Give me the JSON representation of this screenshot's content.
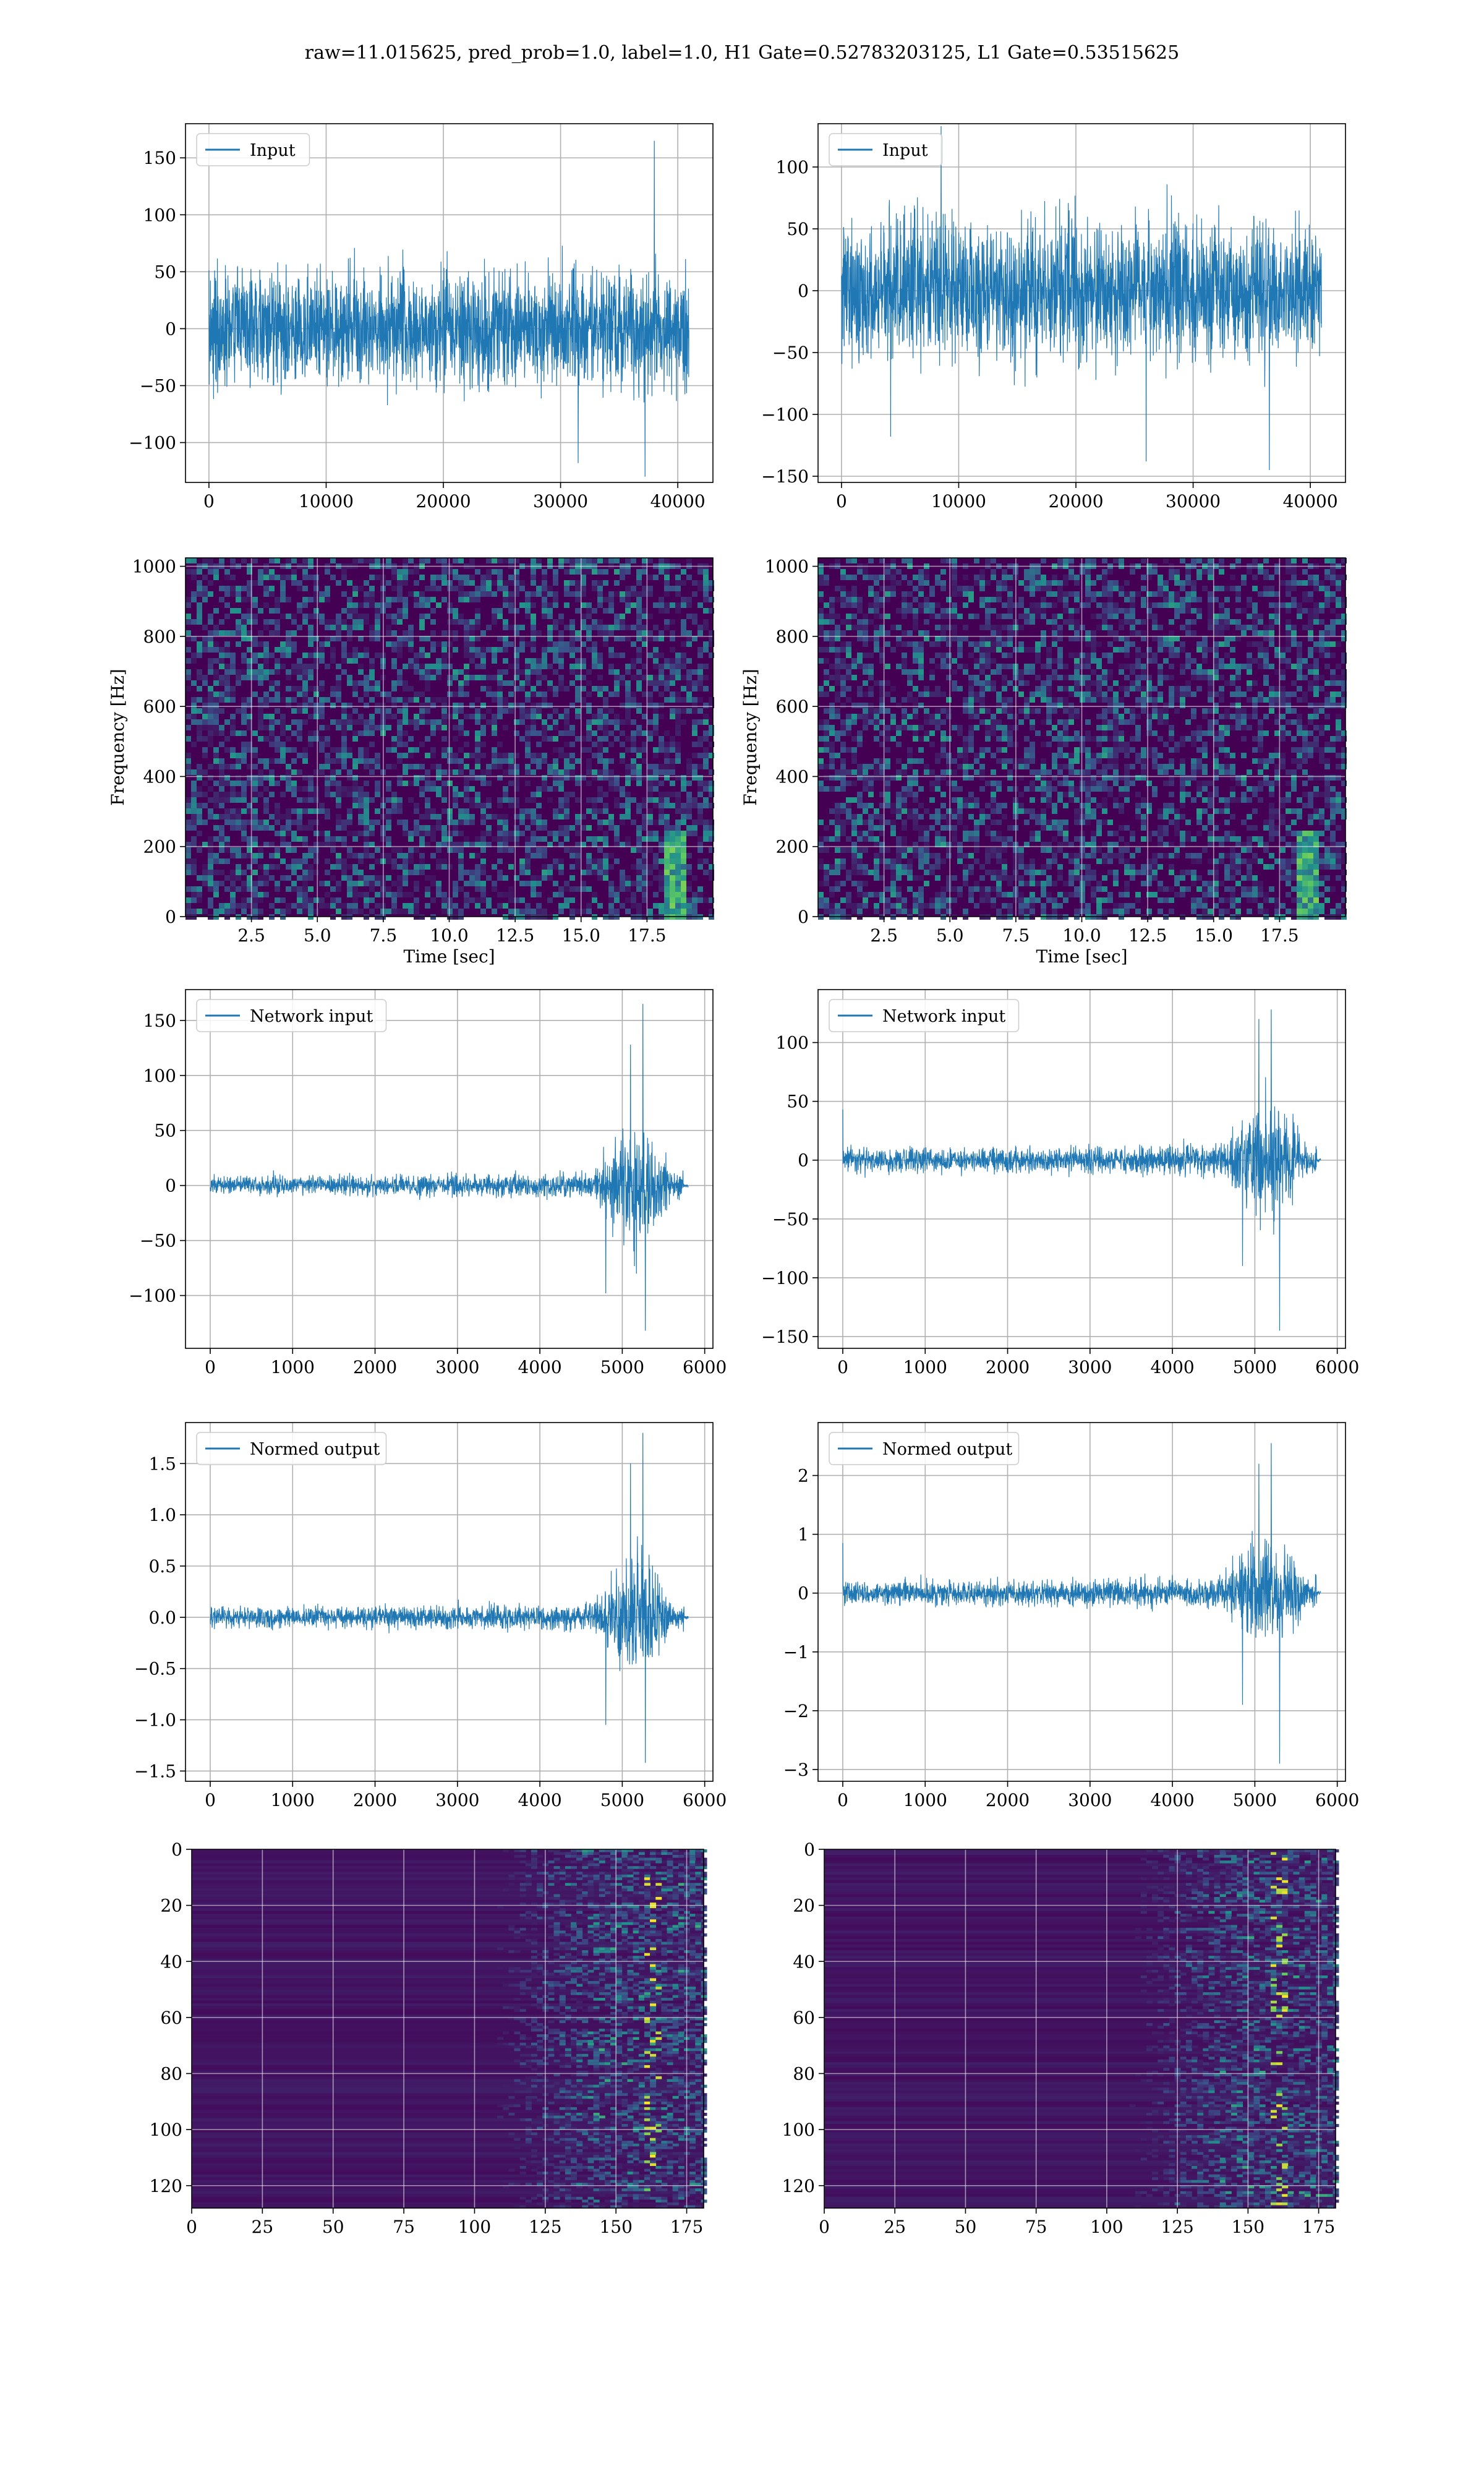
{
  "figure": {
    "suptitle": "raw=11.015625, pred_prob=1.0, label=1.0, H1 Gate=0.52783203125, L1 Gate=0.53515625",
    "colors": {
      "line": "#1f77b4",
      "grid": "#b0b0b0",
      "viridis_low": "#440154",
      "viridis_mid": "#21918c",
      "viridis_high": "#fde725"
    }
  },
  "chart_data": [
    {
      "id": "h1-input",
      "type": "line",
      "column": "H1",
      "row": 1,
      "legend": "Input",
      "legend_loc": "upper left",
      "grid": true,
      "xlim": [
        -2000,
        43000
      ],
      "ylim": [
        -135,
        180
      ],
      "xticks": [
        0,
        10000,
        20000,
        30000,
        40000
      ],
      "yticks": [
        -100,
        -50,
        0,
        50,
        100,
        150
      ],
      "n_samples": 40960,
      "envelope_base": 65,
      "envelope_profile": "flat",
      "spikes": [
        [
          38000,
          165
        ],
        [
          37200,
          -130
        ],
        [
          31500,
          -118
        ]
      ]
    },
    {
      "id": "l1-input",
      "type": "line",
      "column": "L1",
      "row": 1,
      "legend": "Input",
      "legend_loc": "upper left",
      "grid": true,
      "xlim": [
        -2000,
        43000
      ],
      "ylim": [
        -155,
        135
      ],
      "xticks": [
        0,
        10000,
        20000,
        30000,
        40000
      ],
      "yticks": [
        -150,
        -100,
        -50,
        0,
        50,
        100
      ],
      "n_samples": 40960,
      "envelope_base": 72,
      "envelope_profile": "flat",
      "spikes": [
        [
          8500,
          133
        ],
        [
          36500,
          -145
        ],
        [
          26000,
          -138
        ],
        [
          4200,
          -118
        ]
      ]
    },
    {
      "id": "h1-spectrogram",
      "type": "heatmap",
      "column": "H1",
      "row": 2,
      "xlabel": "Time [sec]",
      "ylabel": "Frequency [Hz]",
      "grid": true,
      "xlim": [
        0,
        20
      ],
      "ylim": [
        0,
        1024
      ],
      "xticks": [
        2.5,
        5.0,
        7.5,
        10.0,
        12.5,
        15.0,
        17.5
      ],
      "yticks": [
        0,
        200,
        400,
        600,
        800,
        1000
      ],
      "colormap": "viridis",
      "chirp_time": [
        18.1,
        18.9
      ],
      "chirp_freq_max": 260
    },
    {
      "id": "l1-spectrogram",
      "type": "heatmap",
      "column": "L1",
      "row": 2,
      "xlabel": "Time [sec]",
      "ylabel": "Frequency [Hz]",
      "grid": true,
      "xlim": [
        0,
        20
      ],
      "ylim": [
        0,
        1024
      ],
      "xticks": [
        2.5,
        5.0,
        7.5,
        10.0,
        12.5,
        15.0,
        17.5
      ],
      "yticks": [
        0,
        200,
        400,
        600,
        800,
        1000
      ],
      "colormap": "viridis",
      "chirp_time": [
        18.0,
        18.9
      ],
      "chirp_freq_max": 260
    },
    {
      "id": "h1-network-input",
      "type": "line",
      "column": "H1",
      "row": 3,
      "legend": "Network input",
      "legend_loc": "upper left",
      "grid": true,
      "xlim": [
        -300,
        6100
      ],
      "ylim": [
        -148,
        178
      ],
      "xticks": [
        0,
        1000,
        2000,
        3000,
        4000,
        5000,
        6000
      ],
      "yticks": [
        -100,
        -50,
        0,
        50,
        100,
        150
      ],
      "n_samples": 5800,
      "envelope_base": 13,
      "envelope_profile": "chirp",
      "burst_start": 4650,
      "burst_end": 5750,
      "burst_amp": 70,
      "spikes": [
        [
          5250,
          165
        ],
        [
          5280,
          -132
        ],
        [
          4800,
          -98
        ],
        [
          5100,
          128
        ]
      ]
    },
    {
      "id": "l1-network-input",
      "type": "line",
      "column": "L1",
      "row": 3,
      "legend": "Network input",
      "legend_loc": "upper left",
      "grid": true,
      "xlim": [
        -300,
        6100
      ],
      "ylim": [
        -160,
        145
      ],
      "xticks": [
        0,
        1000,
        2000,
        3000,
        4000,
        5000,
        6000
      ],
      "yticks": [
        -150,
        -100,
        -50,
        0,
        50,
        100
      ],
      "n_samples": 5800,
      "envelope_base": 15,
      "envelope_profile": "chirp",
      "burst_start": 4600,
      "burst_end": 5750,
      "burst_amp": 60,
      "spikes": [
        [
          5300,
          -145
        ],
        [
          5200,
          128
        ],
        [
          5050,
          120
        ],
        [
          4850,
          -90
        ],
        [
          0,
          43
        ]
      ]
    },
    {
      "id": "h1-normed-output",
      "type": "line",
      "column": "H1",
      "row": 4,
      "legend": "Normed output",
      "legend_loc": "upper left",
      "grid": true,
      "xlim": [
        -300,
        6100
      ],
      "ylim": [
        -1.6,
        1.9
      ],
      "xticks": [
        0,
        1000,
        2000,
        3000,
        4000,
        5000,
        6000
      ],
      "yticks": [
        -1.5,
        -1.0,
        -0.5,
        0.0,
        0.5,
        1.0,
        1.5
      ],
      "n_samples": 5800,
      "envelope_base": 0.15,
      "envelope_profile": "chirp",
      "burst_start": 4650,
      "burst_end": 5750,
      "burst_amp": 0.75,
      "spikes": [
        [
          5250,
          1.8
        ],
        [
          5280,
          -1.42
        ],
        [
          4800,
          -1.05
        ],
        [
          5100,
          1.5
        ]
      ]
    },
    {
      "id": "l1-normed-output",
      "type": "line",
      "column": "L1",
      "row": 4,
      "legend": "Normed output",
      "legend_loc": "upper left",
      "grid": true,
      "xlim": [
        -300,
        6100
      ],
      "ylim": [
        -3.2,
        2.9
      ],
      "xticks": [
        0,
        1000,
        2000,
        3000,
        4000,
        5000,
        6000
      ],
      "yticks": [
        -3,
        -2,
        -1,
        0,
        1,
        2
      ],
      "n_samples": 5800,
      "envelope_base": 0.3,
      "envelope_profile": "chirp",
      "burst_start": 4600,
      "burst_end": 5750,
      "burst_amp": 1.1,
      "spikes": [
        [
          5300,
          -2.9
        ],
        [
          5200,
          2.55
        ],
        [
          5050,
          2.2
        ],
        [
          4850,
          -1.9
        ],
        [
          0,
          0.85
        ]
      ]
    },
    {
      "id": "h1-feature-map",
      "type": "heatmap",
      "column": "H1",
      "row": 5,
      "grid": true,
      "xlim": [
        0,
        181
      ],
      "ylim": [
        128,
        0
      ],
      "y_inverted": true,
      "xticks": [
        0,
        25,
        50,
        75,
        100,
        125,
        150,
        175
      ],
      "yticks": [
        0,
        20,
        40,
        60,
        80,
        100,
        120
      ],
      "colormap": "viridis",
      "active_from": 120,
      "hotspot_col": 162
    },
    {
      "id": "l1-feature-map",
      "type": "heatmap",
      "column": "L1",
      "row": 5,
      "grid": true,
      "xlim": [
        0,
        181
      ],
      "ylim": [
        128,
        0
      ],
      "y_inverted": true,
      "xticks": [
        0,
        25,
        50,
        75,
        100,
        125,
        150,
        175
      ],
      "yticks": [
        0,
        20,
        40,
        60,
        80,
        100,
        120
      ],
      "colormap": "viridis",
      "active_from": 122,
      "hotspot_col": 160
    }
  ]
}
